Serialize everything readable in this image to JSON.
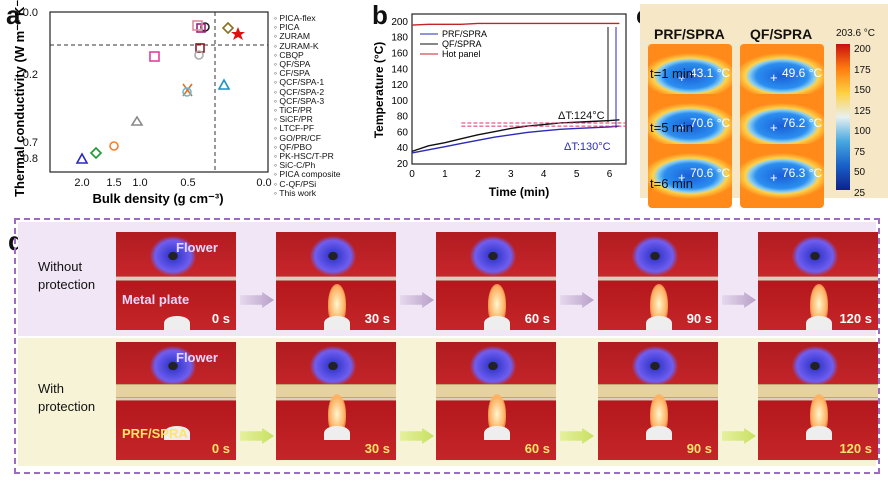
{
  "labels": {
    "a": "a",
    "b": "b",
    "c": "c",
    "d": "d"
  },
  "panel_a": {
    "ylabel": "Thermal conductivity (W m⁻¹ K⁻¹)",
    "xlabel": "Bulk density (g cm⁻³)",
    "yticks": [
      "0.0",
      "0.2",
      "0.7",
      "0.8"
    ],
    "xticks": [
      "2.0",
      "1.5",
      "1.0",
      "0.5",
      "0.0"
    ],
    "legend": [
      "PICA-flex",
      "PICA",
      "ZURAM",
      "ZURAM-K",
      "CBQP",
      "QF/SPA",
      "CF/SPA",
      "QCF/SPA-1",
      "QCF/SPA-2",
      "QCF/SPA-3",
      "TiCF/PR",
      "SiCF/PR",
      "LTCF-PF",
      "GO/PR/CF",
      "QF/PBO",
      "PK-HSC/T-PR",
      "SiC-C/Ph",
      "PICA composite",
      "C-QF/PSi",
      "This work"
    ]
  },
  "chart_data": {
    "type": "line",
    "xlabel": "Time (min)",
    "ylabel": "Temperature (°C)",
    "xlim": [
      0,
      6.5
    ],
    "ylim": [
      20,
      210
    ],
    "xticks": [
      "0",
      "1",
      "2",
      "3",
      "4",
      "5",
      "6"
    ],
    "yticks": [
      "20",
      "40",
      "60",
      "80",
      "100",
      "120",
      "140",
      "160",
      "180",
      "200"
    ],
    "x": [
      0,
      0.5,
      1,
      1.5,
      2,
      2.5,
      3,
      3.5,
      4,
      4.5,
      5,
      5.5,
      6,
      6.3
    ],
    "series": [
      {
        "name": "PRF/SPRA",
        "values": [
          34,
          38,
          42,
          46,
          50,
          54,
          57,
          60,
          62,
          64,
          65,
          66,
          67,
          68
        ]
      },
      {
        "name": "QF/SPRA",
        "values": [
          36,
          43,
          47,
          52,
          57,
          61,
          65,
          68,
          70,
          72,
          73,
          74,
          75,
          76
        ]
      },
      {
        "name": "Hot panel",
        "values": [
          196,
          197,
          197,
          197,
          198,
          198,
          198,
          198,
          198,
          198,
          198,
          198,
          198,
          198
        ]
      }
    ],
    "annotations": [
      "ΔT:124°C",
      "ΔT:130°C"
    ]
  },
  "panel_c": {
    "cols": [
      "PRF/SPRA",
      "QF/SPRA"
    ],
    "rows": [
      "t=1 min",
      "t=5 min",
      "t=6 min"
    ],
    "temps": [
      [
        "43.1 °C",
        "49.6 °C"
      ],
      [
        "70.6 °C",
        "76.2 °C"
      ],
      [
        "70.6 °C",
        "76.3 °C"
      ]
    ],
    "scale_max": "203.6 °C",
    "scale_ticks": [
      "200",
      "175",
      "150",
      "125",
      "100",
      "75",
      "50",
      "25"
    ]
  },
  "panel_d": {
    "row1_label": "Without protection",
    "row2_label": "With protection",
    "flower": "Flower",
    "metal_plate": "Metal plate",
    "prf": "PRF/SPRA",
    "times": [
      "0 s",
      "30 s",
      "60 s",
      "90 s",
      "120 s"
    ]
  },
  "colors": {
    "prf": "#2a2ab8",
    "qf": "#111111",
    "hot": "#c0242a",
    "purple": "#9b6cc2"
  }
}
